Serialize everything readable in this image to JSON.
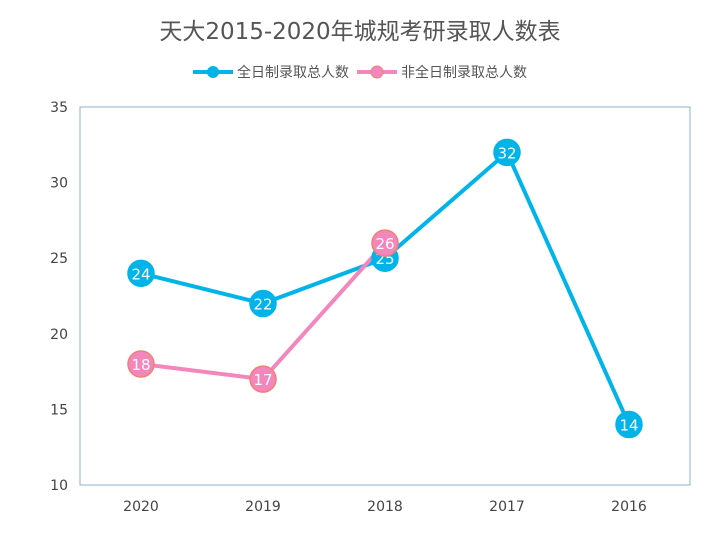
{
  "chart_data": {
    "type": "line",
    "title": "天大2015-2020年城规考研录取人数表",
    "categories": [
      "2020",
      "2019",
      "2018",
      "2017",
      "2016"
    ],
    "series": [
      {
        "name": "全日制录取总人数",
        "values": [
          24,
          22,
          25,
          32,
          14
        ],
        "color": "#00B4EA"
      },
      {
        "name": "非全日制录取总人数",
        "values": [
          18,
          17,
          26,
          null,
          null
        ],
        "color": "#F486BE",
        "marker_border": "#F08070"
      }
    ],
    "ylim": [
      10,
      35
    ],
    "yticks": [
      10,
      15,
      20,
      25,
      30,
      35
    ],
    "legend": "top",
    "grid": false,
    "xlabel": "",
    "ylabel": ""
  }
}
